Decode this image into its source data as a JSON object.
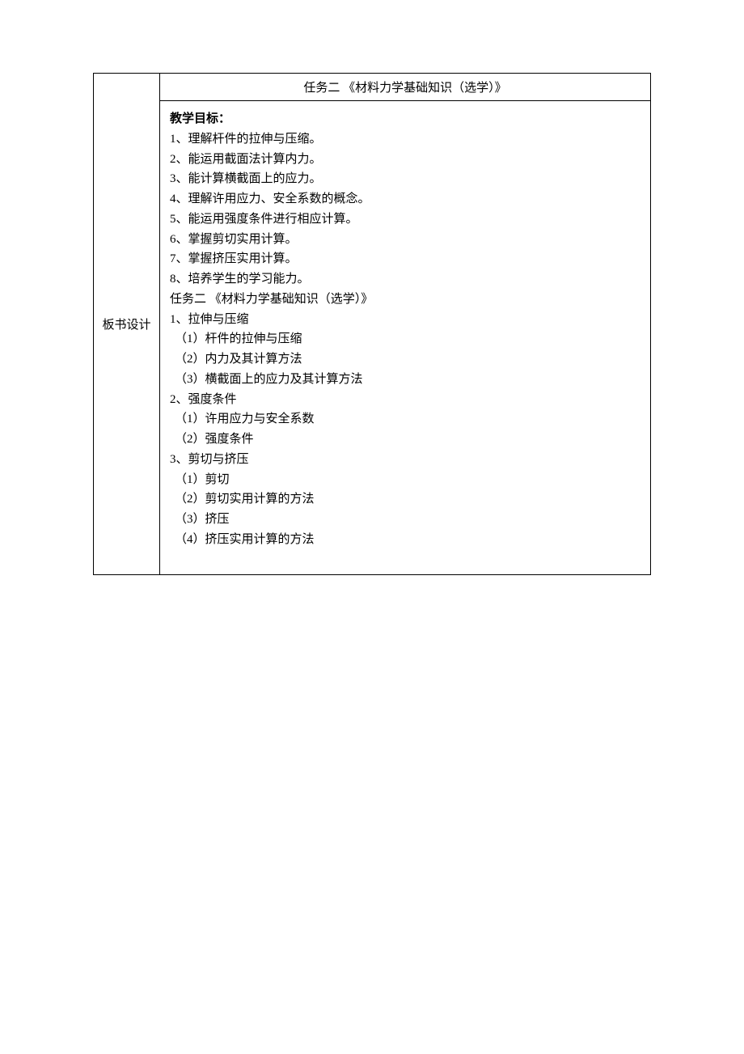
{
  "leftLabel": "板书设计",
  "titleRow": "任务二 《材料力学基础知识（选学）》",
  "heading": "教学目标：",
  "objectives": [
    "1、理解杆件的拉伸与压缩。",
    "2、能运用截面法计算内力。",
    "3、能计算横截面上的应力。",
    "4、理解许用应力、安全系数的概念。",
    "5、能运用强度条件进行相应计算。",
    "6、掌握剪切实用计算。",
    "7、掌握挤压实用计算。",
    "8、培养学生的学习能力。"
  ],
  "taskLine": "任务二 《材料力学基础知识（选学）》",
  "section1": {
    "title": "1、拉伸与压缩",
    "items": [
      "（1）杆件的拉伸与压缩",
      "（2）内力及其计算方法",
      "（3）横截面上的应力及其计算方法"
    ]
  },
  "section2": {
    "title": "2、强度条件",
    "items": [
      "（1）许用应力与安全系数",
      "（2）强度条件"
    ]
  },
  "section3": {
    "title": "3、剪切与挤压",
    "items": [
      "（1）剪切",
      "（2）剪切实用计算的方法",
      "（3）挤压",
      "（4）挤压实用计算的方法"
    ]
  },
  "colors": {
    "background": "#ffffff",
    "text": "#000000",
    "border": "#000000"
  },
  "typography": {
    "fontFamily": "SimSun",
    "baseFontSize": 15,
    "lineHeight": 1.65
  }
}
